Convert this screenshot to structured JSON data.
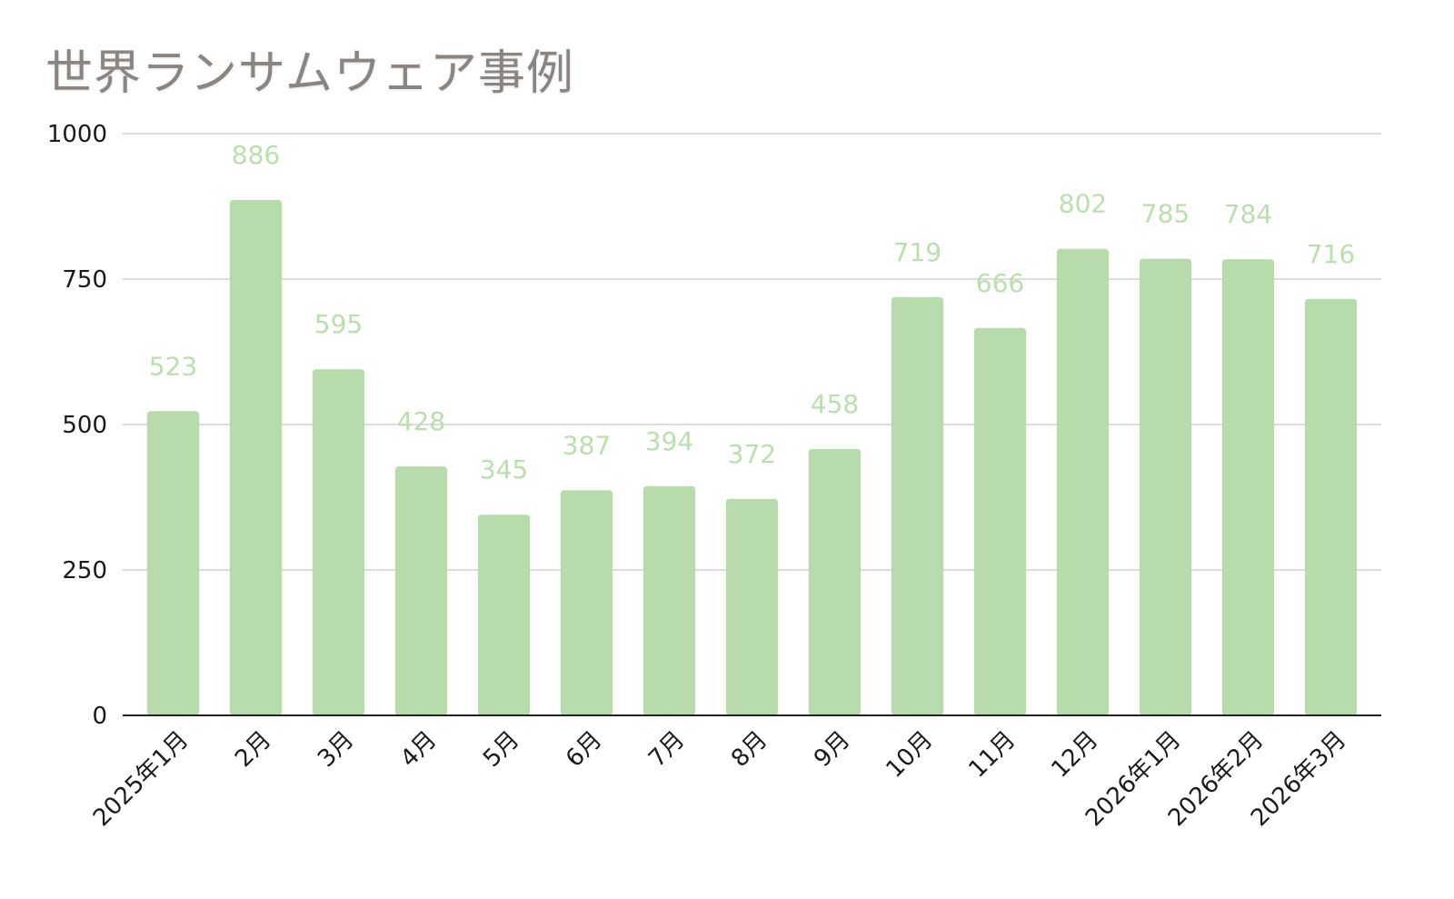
{
  "chart_data": {
    "type": "bar",
    "title": "世界ランサムウェア事例",
    "categories": [
      "2025年1月",
      "2月",
      "3月",
      "4月",
      "5月",
      "6月",
      "7月",
      "8月",
      "9月",
      "10月",
      "11月",
      "12月",
      "2026年1月",
      "2026年2月",
      "2026年3月"
    ],
    "values": [
      523,
      886,
      595,
      428,
      345,
      387,
      394,
      372,
      458,
      719,
      666,
      802,
      785,
      784,
      716
    ],
    "ylim": [
      0,
      1000
    ],
    "yticks": [
      0,
      250,
      500,
      750,
      1000
    ],
    "xlabel": "",
    "ylabel": "",
    "grid": true,
    "legend": "none",
    "bar_color": "#b7dbab",
    "label_color": "#b9dfac"
  }
}
